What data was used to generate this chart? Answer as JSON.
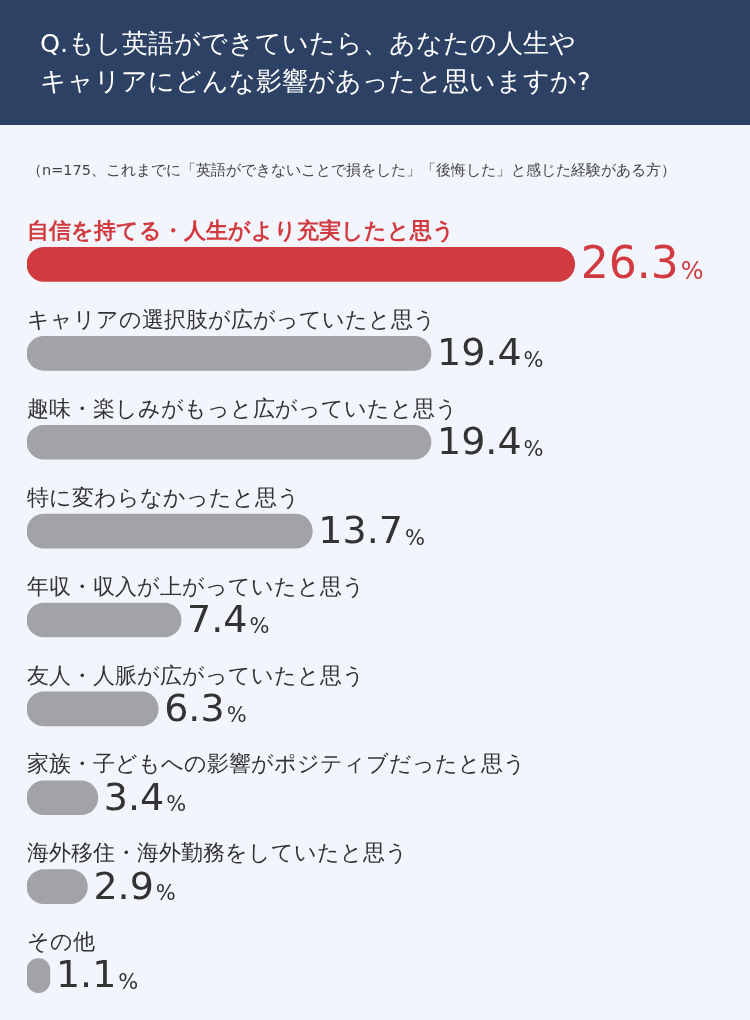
{
  "chart_data": {
    "type": "bar",
    "orientation": "horizontal",
    "title": "Q.もし英語ができていたら、あなたの人生やキャリアにどんな影響があったと思いますか?",
    "subtitle": "（n=175、これまでに「英語ができないことで損をした」「後悔した」と感じた経験がある方）",
    "categories": [
      "自信を持てる・人生がより充実したと思う",
      "キャリアの選択肢が広がっていたと思う",
      "趣味・楽しみがもっと広がっていたと思う",
      "特に変わらなかったと思う",
      "年収・収入が上がっていたと思う",
      "友人・人脈が広がっていたと思う",
      "家族・子どもへの影響がポジティブだったと思う",
      "海外移住・海外勤務をしていたと思う",
      "その他"
    ],
    "values": [
      26.3,
      19.4,
      19.4,
      13.7,
      7.4,
      6.3,
      3.4,
      2.9,
      1.1
    ],
    "value_labels": [
      "26.3%",
      "19.4%",
      "19.4%",
      "13.7%",
      "7.4%",
      "6.3%",
      "3.4%",
      "2.9%",
      "1.1%"
    ],
    "colors": [
      "#d13b40",
      "#a2a3a8",
      "#a2a3a8",
      "#a2a3a8",
      "#a2a3a8",
      "#a2a3a8",
      "#a2a3a8",
      "#a2a3a8",
      "#a2a3a8"
    ],
    "legend": false
  }
}
